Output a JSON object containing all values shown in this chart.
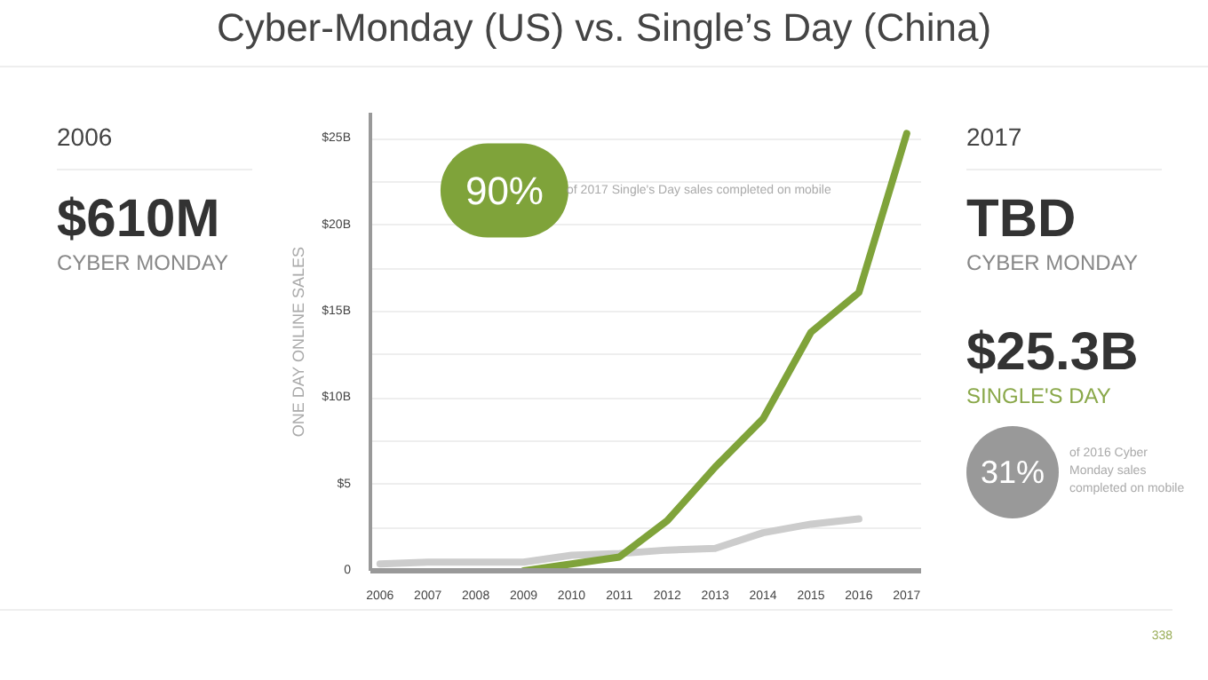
{
  "chart_data": {
    "type": "line",
    "title": "Cyber-Monday (US) vs. Single’s Day (China)",
    "ylabel": "ONE DAY ONLINE SALES",
    "x": [
      2006,
      2007,
      2008,
      2009,
      2010,
      2011,
      2012,
      2013,
      2014,
      2015,
      2016,
      2017
    ],
    "series": [
      {
        "color": "#cccccc",
        "values": [
          0.4,
          0.5,
          0.5,
          0.5,
          0.9,
          1.0,
          1.2,
          1.3,
          2.2,
          2.7,
          3.0,
          null
        ]
      },
      {
        "color": "#7fa33a",
        "values": [
          null,
          null,
          null,
          0.0,
          0.4,
          0.8,
          2.9,
          6.0,
          8.8,
          13.8,
          16.1,
          25.3
        ]
      }
    ],
    "xlim": [
      2005.8,
      2017.3
    ],
    "ylim": [
      0,
      26.5
    ],
    "xticks": [
      2006,
      2007,
      2008,
      2009,
      2010,
      2011,
      2012,
      2013,
      2014,
      2015,
      2016,
      2017
    ],
    "yticks": [
      {
        "value": 0,
        "label": "0"
      },
      {
        "value": 2.5,
        "label": null
      },
      {
        "value": 5,
        "label": "$5"
      },
      {
        "value": 7.5,
        "label": null
      },
      {
        "value": 10,
        "label": "$10B"
      },
      {
        "value": 12.5,
        "label": null
      },
      {
        "value": 15,
        "label": "$15B"
      },
      {
        "value": 17.5,
        "label": null
      },
      {
        "value": 20,
        "label": "$20B"
      },
      {
        "value": 22.5,
        "label": null
      },
      {
        "value": 25,
        "label": "$25B"
      }
    ],
    "grid": "y",
    "annotations": [
      "2006",
      "$610M",
      "CYBER MONDAY",
      "2017",
      "TBD",
      "CYBER MONDAY",
      "$25.3B",
      "SINGLE'S DAY",
      "90%",
      "of 2017 Single's Day sales completed on mobile",
      "31%",
      "of 2016 Cyber Monday sales completed on mobile",
      "338"
    ]
  }
}
